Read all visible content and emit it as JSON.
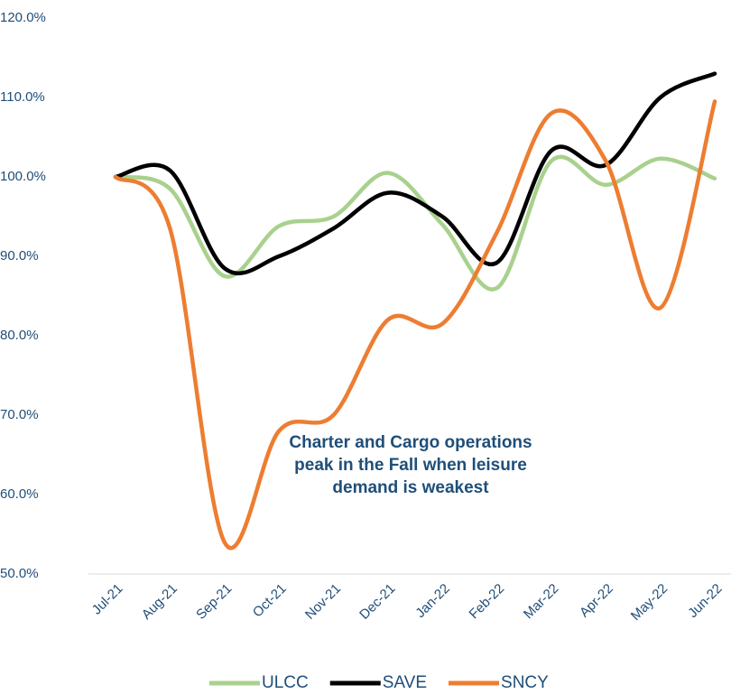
{
  "chart_data": {
    "type": "line",
    "categories": [
      "Jul-21",
      "Aug-21",
      "Sep-21",
      "Oct-21",
      "Nov-21",
      "Dec-21",
      "Jan-22",
      "Feb-22",
      "Mar-22",
      "Apr-22",
      "May-22",
      "Jun-22"
    ],
    "series": [
      {
        "name": "ULCC",
        "color": "#a9d18e",
        "values": [
          100,
          98.5,
          87.5,
          93.8,
          95,
          100.5,
          94,
          86,
          102,
          99,
          102.3,
          99.8
        ]
      },
      {
        "name": "SAVE",
        "color": "#000000",
        "values": [
          100,
          100.8,
          88.5,
          90,
          93.5,
          98,
          95,
          89.2,
          103.3,
          101.5,
          110,
          113
        ]
      },
      {
        "name": "SNCY",
        "color": "#ed7d31",
        "values": [
          100,
          93.5,
          54,
          68,
          70,
          82,
          81.5,
          93,
          108,
          102,
          83.5,
          109.5
        ]
      }
    ],
    "ylim": [
      50,
      120
    ],
    "yticks": [
      {
        "value": 50,
        "label": "50.0%"
      },
      {
        "value": 60,
        "label": "60.0%"
      },
      {
        "value": 70,
        "label": "70.0%"
      },
      {
        "value": 80,
        "label": "80.0%"
      },
      {
        "value": 90,
        "label": "90.0%"
      },
      {
        "value": 100,
        "label": "100.0%"
      },
      {
        "value": 110,
        "label": "110.0%"
      },
      {
        "value": 120,
        "label": "120.0%"
      }
    ],
    "annotation": "Charter and Cargo operations peak in the Fall when leisure demand is weakest",
    "legend": "bottom"
  }
}
